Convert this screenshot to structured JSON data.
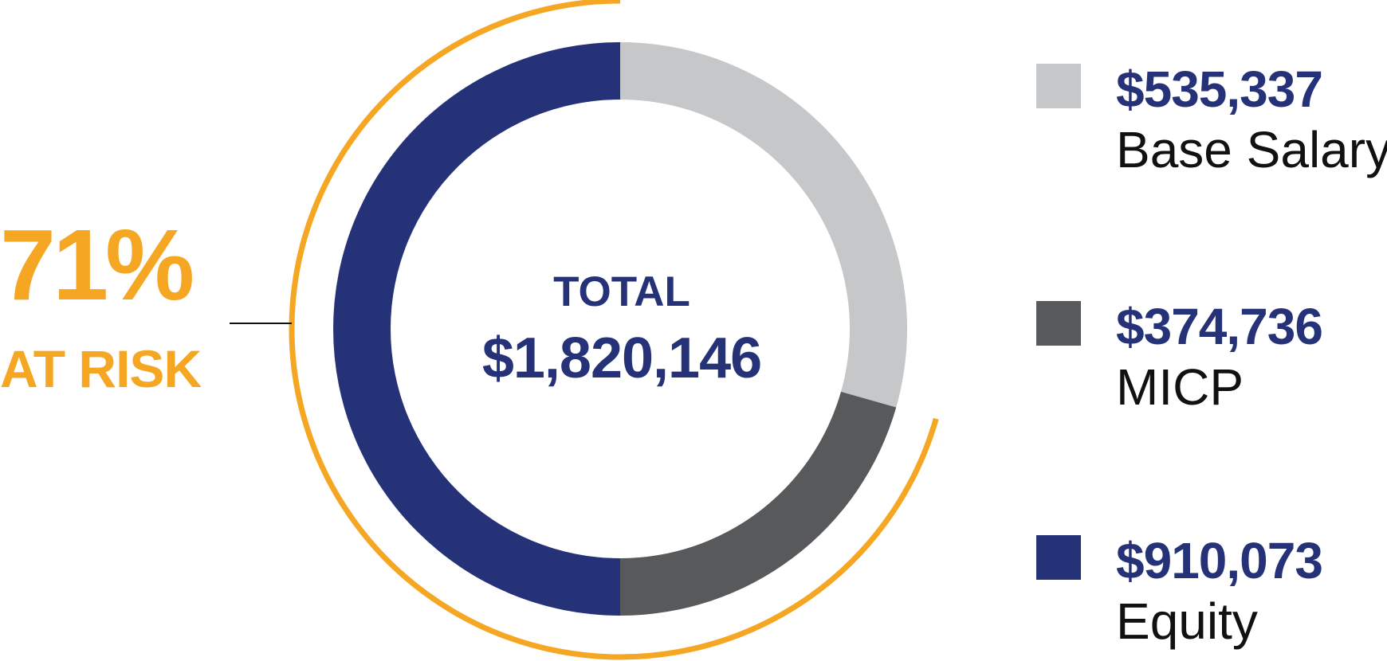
{
  "chart_data": {
    "type": "pie",
    "title": "",
    "center_label": "TOTAL",
    "center_value": "$1,820,146",
    "slices": [
      {
        "label": "Base Salary",
        "display_value": "$535,337",
        "value": 535337,
        "color": "#C6C7C9"
      },
      {
        "label": "MICP",
        "display_value": "$374,736",
        "value": 374736,
        "color": "#58595B"
      },
      {
        "label": "Equity",
        "display_value": "$910,073",
        "value": 910073,
        "color": "#263278"
      }
    ],
    "at_risk": {
      "percent_text": "71%",
      "label": "AT RISK",
      "color": "#F5A623"
    }
  }
}
